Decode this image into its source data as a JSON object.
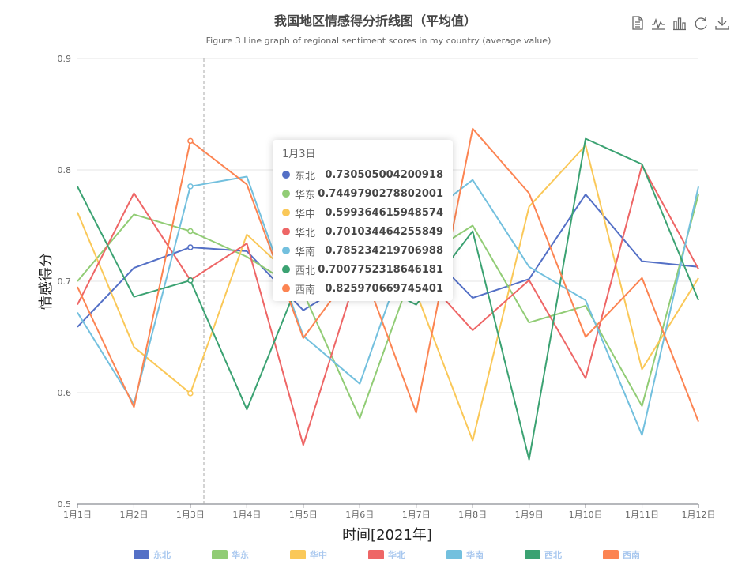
{
  "chart_data": {
    "type": "line",
    "title": "我国地区情感得分折线图（平均值）",
    "subtitle": "Figure 3 Line graph of regional sentiment scores in my country (average value)",
    "xlabel": "时间[2021年]",
    "ylabel": "情感得分",
    "ylim": [
      0.5,
      0.9
    ],
    "yticks": [
      "0.5",
      "0.6",
      "0.7",
      "0.8",
      "0.9"
    ],
    "grid": true,
    "legend_position": "bottom",
    "categories": [
      "1月1日",
      "1月2日",
      "1月3日",
      "1月4日",
      "1月5日",
      "1月6日",
      "1月7日",
      "1月8日",
      "1月9日",
      "1月10日",
      "1月11日",
      "1月12日"
    ],
    "series": [
      {
        "name": "东北",
        "color": "#5470c6",
        "values": [
          0.659,
          0.712,
          0.7305,
          0.727,
          0.674,
          0.705,
          0.737,
          0.685,
          0.702,
          0.778,
          0.718,
          0.713
        ]
      },
      {
        "name": "华东",
        "color": "#91cc75",
        "values": [
          0.7,
          0.76,
          0.745,
          0.722,
          0.69,
          0.577,
          0.718,
          0.75,
          0.663,
          0.678,
          0.588,
          0.778
        ]
      },
      {
        "name": "华中",
        "color": "#fac858",
        "values": [
          0.762,
          0.641,
          0.5994,
          0.742,
          0.695,
          0.7,
          0.69,
          0.557,
          0.767,
          0.822,
          0.621,
          0.703
        ]
      },
      {
        "name": "华北",
        "color": "#ee6666",
        "values": [
          0.679,
          0.779,
          0.701,
          0.734,
          0.553,
          0.715,
          0.712,
          0.656,
          0.701,
          0.613,
          0.804,
          0.711
        ]
      },
      {
        "name": "华南",
        "color": "#73c0de",
        "values": [
          0.672,
          0.59,
          0.7852,
          0.794,
          0.651,
          0.608,
          0.752,
          0.791,
          0.713,
          0.683,
          0.562,
          0.785
        ]
      },
      {
        "name": "西北",
        "color": "#3ba272",
        "values": [
          0.785,
          0.686,
          0.7008,
          0.585,
          0.71,
          0.705,
          0.679,
          0.745,
          0.54,
          0.828,
          0.805,
          0.683
        ]
      },
      {
        "name": "西南",
        "color": "#fc8452",
        "values": [
          0.695,
          0.587,
          0.826,
          0.787,
          0.649,
          0.718,
          0.582,
          0.837,
          0.779,
          0.65,
          0.703,
          0.574
        ]
      }
    ]
  },
  "tooltip": {
    "header": "1月3日",
    "rows": [
      {
        "name": "东北",
        "value": "0.730505004200918"
      },
      {
        "name": "华东",
        "value": "0.7449790278802001"
      },
      {
        "name": "华中",
        "value": "0.599364615948574"
      },
      {
        "name": "华北",
        "value": "0.701034464255849"
      },
      {
        "name": "华南",
        "value": "0.785234219706988"
      },
      {
        "name": "西北",
        "value": "0.7007752318646181"
      },
      {
        "name": "西南",
        "value": "0.825970669745401"
      }
    ]
  },
  "toolbox": {
    "icons": [
      "data-view-icon",
      "line-chart-icon",
      "bar-chart-icon",
      "restore-icon",
      "download-icon"
    ]
  }
}
